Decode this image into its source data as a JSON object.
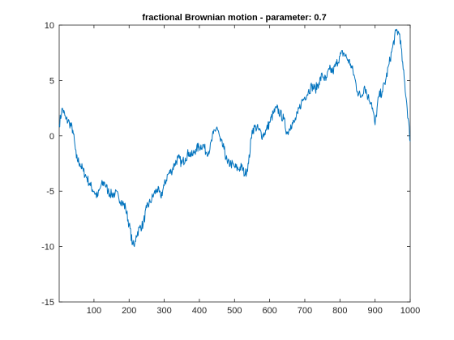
{
  "chart_data": {
    "type": "line",
    "title": "fractional Brownian motion - parameter: 0.7",
    "xlabel": "",
    "ylabel": "",
    "xlim": [
      1,
      1000
    ],
    "ylim": [
      -15,
      10
    ],
    "xticks": [
      100,
      200,
      300,
      400,
      500,
      600,
      700,
      800,
      900,
      1000
    ],
    "yticks": [
      -15,
      -10,
      -5,
      0,
      5,
      10
    ],
    "grid": false,
    "legend": "none",
    "line_color": "#0072BD",
    "axis_color": "#262626",
    "series": [
      {
        "x": [
          1,
          10,
          20,
          30,
          40,
          50,
          60,
          70,
          80,
          90,
          100,
          110,
          120,
          130,
          140,
          150,
          160,
          170,
          180,
          190,
          200,
          210,
          215,
          220,
          230,
          240,
          250,
          260,
          270,
          280,
          290,
          300,
          310,
          320,
          330,
          340,
          350,
          360,
          370,
          380,
          390,
          400,
          410,
          420,
          430,
          440,
          450,
          460,
          470,
          480,
          490,
          500,
          510,
          520,
          530,
          540,
          550,
          560,
          570,
          580,
          590,
          600,
          610,
          620,
          630,
          640,
          650,
          660,
          670,
          680,
          690,
          700,
          710,
          720,
          730,
          740,
          750,
          760,
          770,
          780,
          790,
          800,
          810,
          820,
          830,
          840,
          850,
          860,
          870,
          880,
          890,
          900,
          910,
          920,
          930,
          940,
          950,
          960,
          970,
          980,
          990,
          1000
        ],
        "values": [
          1.0,
          2.5,
          1.5,
          1.2,
          0.5,
          -2.0,
          -2.5,
          -3.2,
          -3.8,
          -4.5,
          -5.0,
          -5.5,
          -4.5,
          -4.2,
          -5.0,
          -5.3,
          -5.2,
          -5.5,
          -6.0,
          -6.5,
          -8.0,
          -9.8,
          -10.0,
          -9.0,
          -8.3,
          -8.0,
          -6.5,
          -6.0,
          -5.3,
          -4.8,
          -5.5,
          -4.5,
          -3.5,
          -3.2,
          -2.5,
          -2.0,
          -2.5,
          -2.0,
          -1.5,
          -1.8,
          -1.2,
          -1.0,
          -0.8,
          -1.5,
          -1.2,
          0.2,
          0.8,
          -0.5,
          -1.2,
          -2.5,
          -2.5,
          -2.8,
          -3.0,
          -2.8,
          -3.5,
          -2.5,
          0.5,
          0.8,
          0.5,
          0.0,
          0.5,
          1.2,
          2.0,
          2.5,
          2.0,
          1.5,
          0.2,
          1.0,
          1.2,
          2.0,
          3.0,
          3.5,
          4.0,
          4.5,
          4.2,
          4.8,
          5.5,
          5.0,
          6.0,
          5.8,
          6.5,
          7.2,
          7.5,
          7.0,
          6.5,
          5.5,
          4.0,
          3.5,
          4.5,
          3.5,
          3.0,
          1.0,
          3.5,
          4.0,
          5.0,
          6.5,
          8.0,
          9.5,
          9.2,
          6.0,
          3.0,
          -0.5
        ]
      }
    ]
  }
}
